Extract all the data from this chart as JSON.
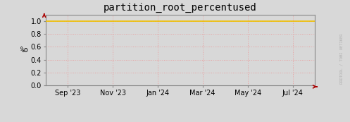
{
  "title": "partition_root_percentused",
  "ylabel": "%o",
  "background_color": "#d8d8d8",
  "plot_bg_color": "#d8d8d8",
  "grid_color": "#e8a0a0",
  "line_color": "#f0c000",
  "line_y": 1.0,
  "ylim_min": 0.0,
  "ylim_max": 1.1,
  "yticks": [
    0.0,
    0.2,
    0.4,
    0.6,
    0.8,
    1.0
  ],
  "yticklabels": [
    "0.0",
    "0.2",
    "0.4",
    "0.6",
    "0.8",
    "1.0"
  ],
  "xtick_labels": [
    "Sep '23",
    "Nov '23",
    "Jan '24",
    "Mar '24",
    "May '24",
    "Jul '24"
  ],
  "xtick_positions": [
    0.083,
    0.25,
    0.417,
    0.583,
    0.75,
    0.917
  ],
  "legend_color": "#f0c000",
  "title_fontsize": 10,
  "axis_fontsize": 7,
  "tick_label_fontsize": 7,
  "watermark": "RRDTOOL / TOBI OETIKER",
  "arrow_color": "#aa0000",
  "spine_color": "#888888",
  "watermark_color": "#b0b0b0"
}
